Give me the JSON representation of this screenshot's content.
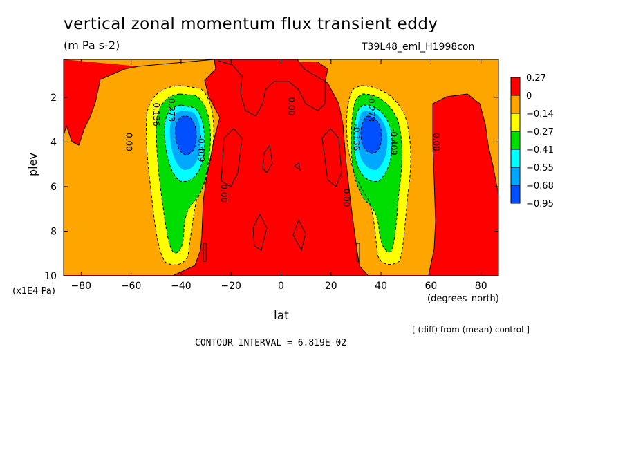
{
  "title": "vertical zonal momentum flux transient eddy",
  "units": "(m Pa s-2)",
  "experiment": "T39L48_eml_H1998con",
  "diff_note": "[ (diff) from (mean) control ]",
  "contour_interval": "CONTOUR INTERVAL = 6.819E-02",
  "colors": {
    "red": "#ff0000",
    "orange": "#ffa500",
    "yellow": "#ffff00",
    "green": "#00dd00",
    "cyan": "#00ffff",
    "lightblue": "#00a8ff",
    "blue": "#0050ff"
  },
  "chart_data": {
    "type": "heatmap",
    "xlabel": "lat",
    "x_unit": "(degrees_north)",
    "ylabel": "plev",
    "y_unit": "(x1E4 Pa)",
    "xlim": [
      -87,
      87
    ],
    "ylim": [
      10,
      0.3
    ],
    "x_ticks": [
      -80,
      -60,
      -40,
      -20,
      0,
      20,
      40,
      60,
      80
    ],
    "x_tick_labels": [
      "−80",
      "−60",
      "−40",
      "−20",
      "0",
      "20",
      "40",
      "60",
      "80"
    ],
    "y_ticks": [
      2,
      4,
      6,
      8,
      10
    ],
    "colorbar": {
      "labels": [
        "0.27",
        "0",
        "−0.14",
        "−0.27",
        "−0.41",
        "−0.55",
        "−0.68",
        "−0.95"
      ],
      "colors": [
        "#ff0000",
        "#ffa500",
        "#ffff00",
        "#00dd00",
        "#00ffff",
        "#00a8ff",
        "#0050ff"
      ]
    },
    "contour_labels": [
      {
        "text": "0.00",
        "lat": -62,
        "plev": 4.0
      },
      {
        "text": "-0.136",
        "lat": -51,
        "plev": 2.7
      },
      {
        "text": "-0.273",
        "lat": -45,
        "plev": 2.5
      },
      {
        "text": "-0.409",
        "lat": -33,
        "plev": 4.3
      },
      {
        "text": "0.00",
        "lat": -24,
        "plev": 6.3
      },
      {
        "text": "0.00",
        "lat": 3,
        "plev": 2.4
      },
      {
        "text": "0.00",
        "lat": 25,
        "plev": 6.5
      },
      {
        "text": "-0.136",
        "lat": 29,
        "plev": 3.8
      },
      {
        "text": "-0.273",
        "lat": 35,
        "plev": 2.5
      },
      {
        "text": "-0.409",
        "lat": 44,
        "plev": 4.0
      },
      {
        "text": "0.00",
        "lat": 61,
        "plev": 4.0
      }
    ],
    "minima": [
      {
        "lat": -38,
        "plev": 3.5,
        "value": -0.95
      },
      {
        "lat": 37,
        "plev": 3.5,
        "value": -0.95
      }
    ]
  }
}
